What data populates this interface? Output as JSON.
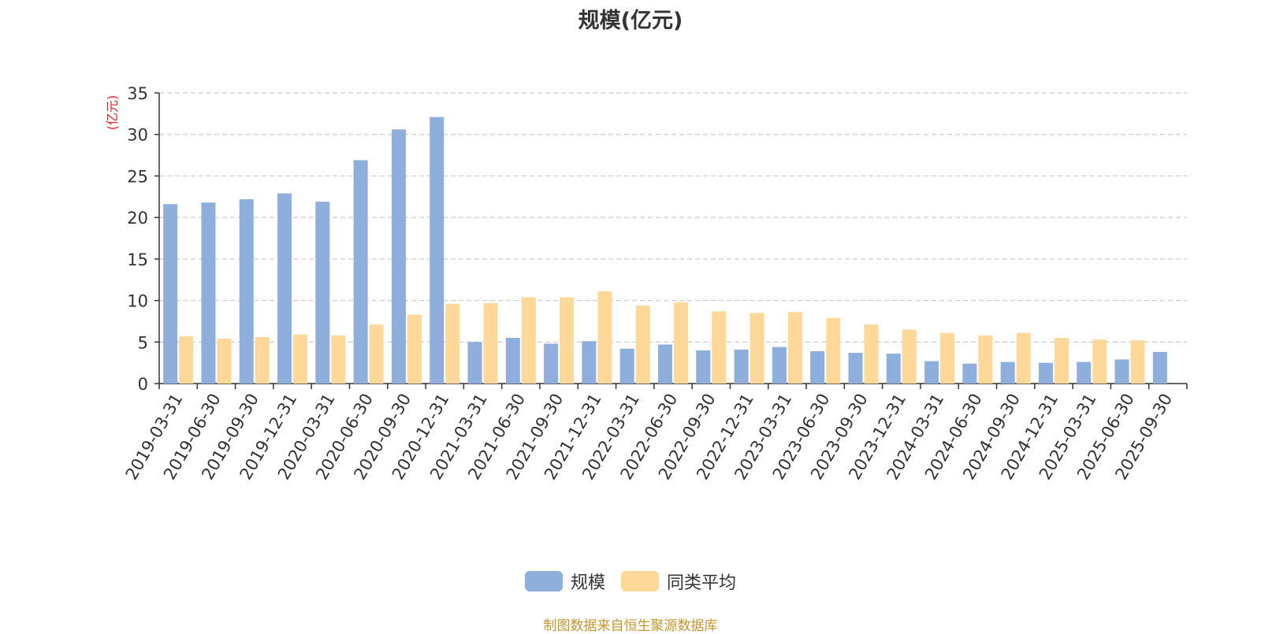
{
  "chart_data": {
    "type": "bar",
    "title": "规模(亿元)",
    "ylabel": "(亿元)",
    "xlabel": "",
    "ylim": [
      0,
      35
    ],
    "yticks": [
      0,
      5,
      10,
      15,
      20,
      25,
      30,
      35
    ],
    "grid": true,
    "legend_position": "bottom",
    "categories": [
      "2019-03-31",
      "2019-06-30",
      "2019-09-30",
      "2019-12-31",
      "2020-03-31",
      "2020-06-30",
      "2020-09-30",
      "2020-12-31",
      "2021-03-31",
      "2021-06-30",
      "2021-09-30",
      "2021-12-31",
      "2022-03-31",
      "2022-06-30",
      "2022-09-30",
      "2022-12-31",
      "2023-03-31",
      "2023-06-30",
      "2023-09-30",
      "2023-12-31",
      "2024-03-31",
      "2024-06-30",
      "2024-09-30",
      "2024-12-31",
      "2025-03-31",
      "2025-06-30",
      "2025-09-30"
    ],
    "series": [
      {
        "name": "规模",
        "color": "#8eaedb",
        "values": [
          21.6,
          21.8,
          22.2,
          22.9,
          21.9,
          26.9,
          30.6,
          32.1,
          5.0,
          5.5,
          4.8,
          5.1,
          4.2,
          4.7,
          4.0,
          4.1,
          4.4,
          3.9,
          3.7,
          3.6,
          2.7,
          2.4,
          2.6,
          2.5,
          2.6,
          2.9,
          3.8
        ]
      },
      {
        "name": "同类平均",
        "color": "#fdd899",
        "values": [
          5.7,
          5.4,
          5.6,
          5.9,
          5.8,
          7.1,
          8.3,
          9.6,
          9.7,
          10.4,
          10.4,
          11.1,
          9.4,
          9.8,
          8.7,
          8.5,
          8.6,
          7.9,
          7.1,
          6.5,
          6.1,
          5.8,
          6.1,
          5.5,
          5.3,
          5.2,
          null
        ]
      }
    ]
  },
  "footer": {
    "source": "制图数据来自恒生聚源数据库"
  }
}
